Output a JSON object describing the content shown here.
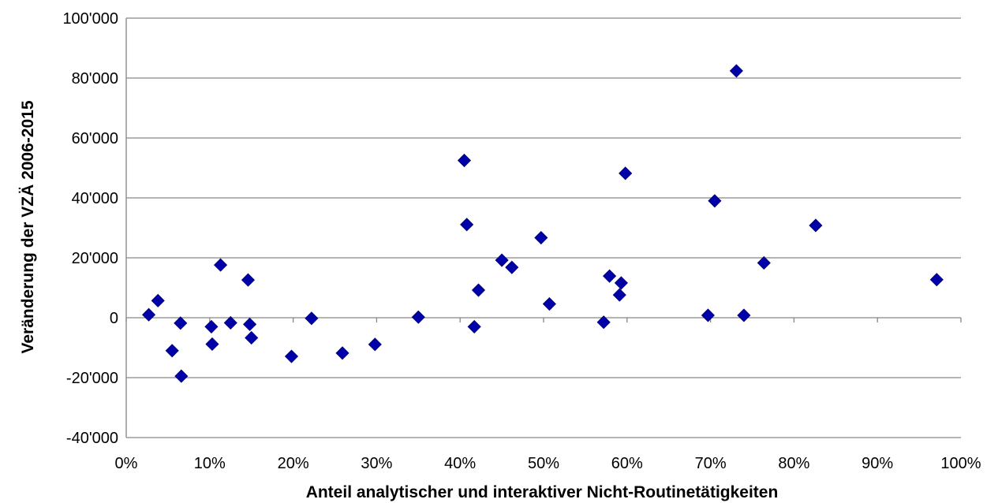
{
  "chart_data": {
    "type": "scatter",
    "title": "",
    "xlabel": "Anteil analytischer und interaktiver Nicht-Routinetätigkeiten",
    "ylabel": "Veränderung der VZÄ 2006-2015",
    "xlim": [
      0,
      1
    ],
    "ylim": [
      -40000,
      100000
    ],
    "x_ticks": [
      0,
      0.1,
      0.2,
      0.3,
      0.4,
      0.5,
      0.6,
      0.7,
      0.8,
      0.9,
      1.0
    ],
    "x_tick_labels": [
      "0%",
      "10%",
      "20%",
      "30%",
      "40%",
      "50%",
      "60%",
      "70%",
      "80%",
      "90%",
      "100%"
    ],
    "y_ticks": [
      -40000,
      -20000,
      0,
      20000,
      40000,
      60000,
      80000,
      100000
    ],
    "y_tick_labels": [
      "-40'000",
      "-20'000",
      "0",
      "20'000",
      "40'000",
      "60'000",
      "80'000",
      "100'000"
    ],
    "grid": "horizontal",
    "legend": "none",
    "marker": "diamond",
    "marker_color": "#0000a8",
    "series": [
      {
        "points": [
          [
            0.027,
            1000
          ],
          [
            0.038,
            5700
          ],
          [
            0.055,
            -11000
          ],
          [
            0.065,
            -1800
          ],
          [
            0.066,
            -19500
          ],
          [
            0.102,
            -3000
          ],
          [
            0.103,
            -8800
          ],
          [
            0.113,
            17600
          ],
          [
            0.125,
            -1700
          ],
          [
            0.146,
            12600
          ],
          [
            0.148,
            -2200
          ],
          [
            0.15,
            -6700
          ],
          [
            0.198,
            -12900
          ],
          [
            0.222,
            -200
          ],
          [
            0.259,
            -11800
          ],
          [
            0.298,
            -8900
          ],
          [
            0.35,
            200
          ],
          [
            0.405,
            52500
          ],
          [
            0.408,
            31100
          ],
          [
            0.417,
            -3000
          ],
          [
            0.422,
            9200
          ],
          [
            0.45,
            19200
          ],
          [
            0.462,
            16800
          ],
          [
            0.497,
            26700
          ],
          [
            0.507,
            4600
          ],
          [
            0.572,
            -1500
          ],
          [
            0.579,
            13900
          ],
          [
            0.591,
            7600
          ],
          [
            0.593,
            11600
          ],
          [
            0.598,
            48200
          ],
          [
            0.697,
            800
          ],
          [
            0.705,
            39000
          ],
          [
            0.731,
            82400
          ],
          [
            0.74,
            800
          ],
          [
            0.764,
            18300
          ],
          [
            0.826,
            30800
          ],
          [
            0.971,
            12700
          ]
        ]
      }
    ]
  }
}
